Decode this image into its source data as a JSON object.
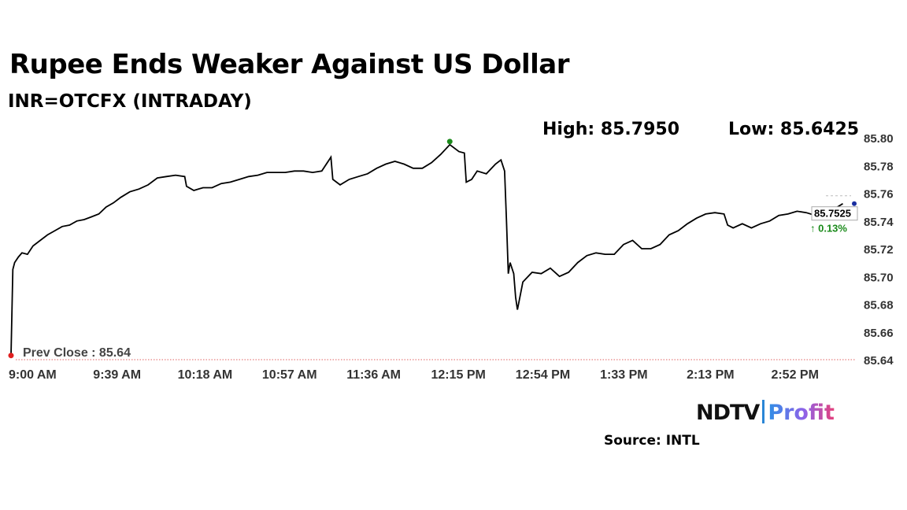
{
  "title": "Rupee Ends Weaker Against US Dollar",
  "subtitle": "INR=OTCFX (INTRADAY)",
  "stats": {
    "high": "High: 85.7950",
    "low": "Low: 85.6425"
  },
  "source": "Source: INTL",
  "brand": {
    "ndtv": "NDTV",
    "profit": "Profit"
  },
  "chart_data": {
    "type": "line",
    "title": "Rupee Ends Weaker Against US Dollar",
    "subtitle": "INR=OTCFX (INTRADAY)",
    "x_ticks": [
      "9:00 AM",
      "9:39 AM",
      "10:18 AM",
      "10:57 AM",
      "11:36 AM",
      "12:15 PM",
      "12:54 PM",
      "1:33 PM",
      "2:13 PM",
      "2:52 PM"
    ],
    "x_range": [
      "9:00 AM",
      "3:30 PM"
    ],
    "y_ticks": [
      85.8,
      85.78,
      85.76,
      85.74,
      85.72,
      85.7,
      85.68,
      85.66,
      85.64
    ],
    "ylim": [
      85.64,
      85.8
    ],
    "y_axis_position": "right",
    "grid": false,
    "prev_close": {
      "label": "Prev Close : 85.64",
      "value": 85.64
    },
    "high": 85.795,
    "low": 85.6425,
    "last_value": "85.7525",
    "change": "0.13%",
    "colors": {
      "line": "#000000",
      "high_marker": "#1a8a1a",
      "start_marker": "#e02020",
      "last_marker": "#1a2fa0",
      "change": "#1a8a1a",
      "prev_close_line": "#e06060"
    },
    "series": [
      {
        "points": [
          [
            0,
            85.643
          ],
          [
            1,
            85.705
          ],
          [
            2,
            85.71
          ],
          [
            4,
            85.714
          ],
          [
            6,
            85.717
          ],
          [
            9,
            85.716
          ],
          [
            12,
            85.722
          ],
          [
            16,
            85.726
          ],
          [
            20,
            85.73
          ],
          [
            24,
            85.733
          ],
          [
            28,
            85.736
          ],
          [
            32,
            85.737
          ],
          [
            36,
            85.74
          ],
          [
            40,
            85.741
          ],
          [
            44,
            85.743
          ],
          [
            48,
            85.745
          ],
          [
            52,
            85.75
          ],
          [
            56,
            85.753
          ],
          [
            60,
            85.757
          ],
          [
            65,
            85.761
          ],
          [
            70,
            85.763
          ],
          [
            75,
            85.766
          ],
          [
            80,
            85.771
          ],
          [
            85,
            85.772
          ],
          [
            90,
            85.773
          ],
          [
            95,
            85.772
          ],
          [
            96,
            85.765
          ],
          [
            100,
            85.762
          ],
          [
            105,
            85.764
          ],
          [
            110,
            85.764
          ],
          [
            115,
            85.767
          ],
          [
            120,
            85.768
          ],
          [
            125,
            85.77
          ],
          [
            130,
            85.772
          ],
          [
            135,
            85.773
          ],
          [
            140,
            85.775
          ],
          [
            145,
            85.775
          ],
          [
            150,
            85.775
          ],
          [
            155,
            85.776
          ],
          [
            160,
            85.776
          ],
          [
            165,
            85.775
          ],
          [
            170,
            85.776
          ],
          [
            175,
            85.786
          ],
          [
            176,
            85.77
          ],
          [
            180,
            85.766
          ],
          [
            185,
            85.77
          ],
          [
            190,
            85.772
          ],
          [
            195,
            85.774
          ],
          [
            200,
            85.778
          ],
          [
            205,
            85.781
          ],
          [
            210,
            85.783
          ],
          [
            215,
            85.781
          ],
          [
            220,
            85.778
          ],
          [
            225,
            85.778
          ],
          [
            230,
            85.782
          ],
          [
            235,
            85.788
          ],
          [
            240,
            85.795
          ],
          [
            245,
            85.79
          ],
          [
            248,
            85.789
          ],
          [
            249,
            85.768
          ],
          [
            252,
            85.77
          ],
          [
            255,
            85.776
          ],
          [
            260,
            85.774
          ],
          [
            265,
            85.781
          ],
          [
            268,
            85.784
          ],
          [
            270,
            85.776
          ],
          [
            271,
            85.74
          ],
          [
            272,
            85.702
          ],
          [
            273,
            85.71
          ],
          [
            275,
            85.702
          ],
          [
            276,
            85.685
          ],
          [
            277,
            85.676
          ],
          [
            280,
            85.696
          ],
          [
            285,
            85.703
          ],
          [
            290,
            85.702
          ],
          [
            295,
            85.706
          ],
          [
            300,
            85.7
          ],
          [
            305,
            85.703
          ],
          [
            310,
            85.71
          ],
          [
            315,
            85.715
          ],
          [
            320,
            85.717
          ],
          [
            325,
            85.716
          ],
          [
            330,
            85.716
          ],
          [
            335,
            85.723
          ],
          [
            340,
            85.726
          ],
          [
            345,
            85.72
          ],
          [
            350,
            85.72
          ],
          [
            355,
            85.723
          ],
          [
            360,
            85.73
          ],
          [
            365,
            85.733
          ],
          [
            370,
            85.738
          ],
          [
            375,
            85.742
          ],
          [
            380,
            85.745
          ],
          [
            385,
            85.746
          ],
          [
            390,
            85.745
          ],
          [
            392,
            85.737
          ],
          [
            395,
            85.735
          ],
          [
            400,
            85.738
          ],
          [
            405,
            85.735
          ],
          [
            410,
            85.738
          ],
          [
            415,
            85.74
          ],
          [
            420,
            85.744
          ],
          [
            425,
            85.745
          ],
          [
            430,
            85.747
          ],
          [
            435,
            85.746
          ],
          [
            440,
            85.744
          ],
          [
            445,
            85.745
          ],
          [
            450,
            85.747
          ],
          [
            452,
            85.75
          ],
          [
            455,
            85.7525
          ]
        ]
      }
    ]
  }
}
